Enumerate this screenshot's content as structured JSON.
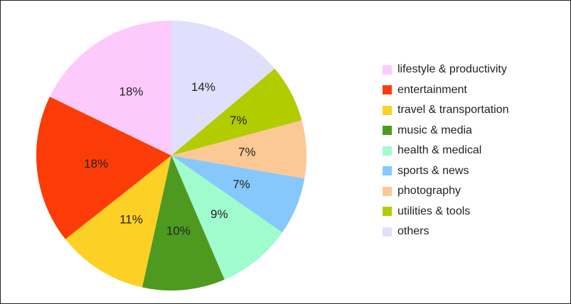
{
  "chart_data": {
    "type": "pie",
    "title": "",
    "legend_position": "right",
    "start_angle": "12 o'clock",
    "direction": "clockwise",
    "slices": [
      {
        "label": "others",
        "value": 14,
        "value_label": "14%",
        "color": "#e0e0fc"
      },
      {
        "label": "utilities & tools",
        "value": 7,
        "value_label": "7%",
        "color": "#b2cc00"
      },
      {
        "label": "photography",
        "value": 7,
        "value_label": "7%",
        "color": "#fcc896"
      },
      {
        "label": "sports & news",
        "value": 7,
        "value_label": "7%",
        "color": "#86c8fc"
      },
      {
        "label": "health & medical",
        "value": 9,
        "value_label": "9%",
        "color": "#a0fccc"
      },
      {
        "label": "music & media",
        "value": 10,
        "value_label": "10%",
        "color": "#4e9a20"
      },
      {
        "label": "travel & transportation",
        "value": 11,
        "value_label": "11%",
        "color": "#fcd024"
      },
      {
        "label": "entertainment",
        "value": 18,
        "value_label": "18%",
        "color": "#fc3c06"
      },
      {
        "label": "lifestyle & productivity",
        "value": 18,
        "value_label": "18%",
        "color": "#fccafc"
      }
    ],
    "legend": [
      {
        "label": "lifestyle & productivity",
        "color": "#fccafc"
      },
      {
        "label": "entertainment",
        "color": "#fc3c06"
      },
      {
        "label": "travel & transportation",
        "color": "#fcd024"
      },
      {
        "label": "music & media",
        "color": "#4e9a20"
      },
      {
        "label": "health & medical",
        "color": "#a0fccc"
      },
      {
        "label": "sports & news",
        "color": "#86c8fc"
      },
      {
        "label": "photography",
        "color": "#fcc896"
      },
      {
        "label": "utilities & tools",
        "color": "#b2cc00"
      },
      {
        "label": "others",
        "color": "#e0e0fc"
      }
    ]
  }
}
